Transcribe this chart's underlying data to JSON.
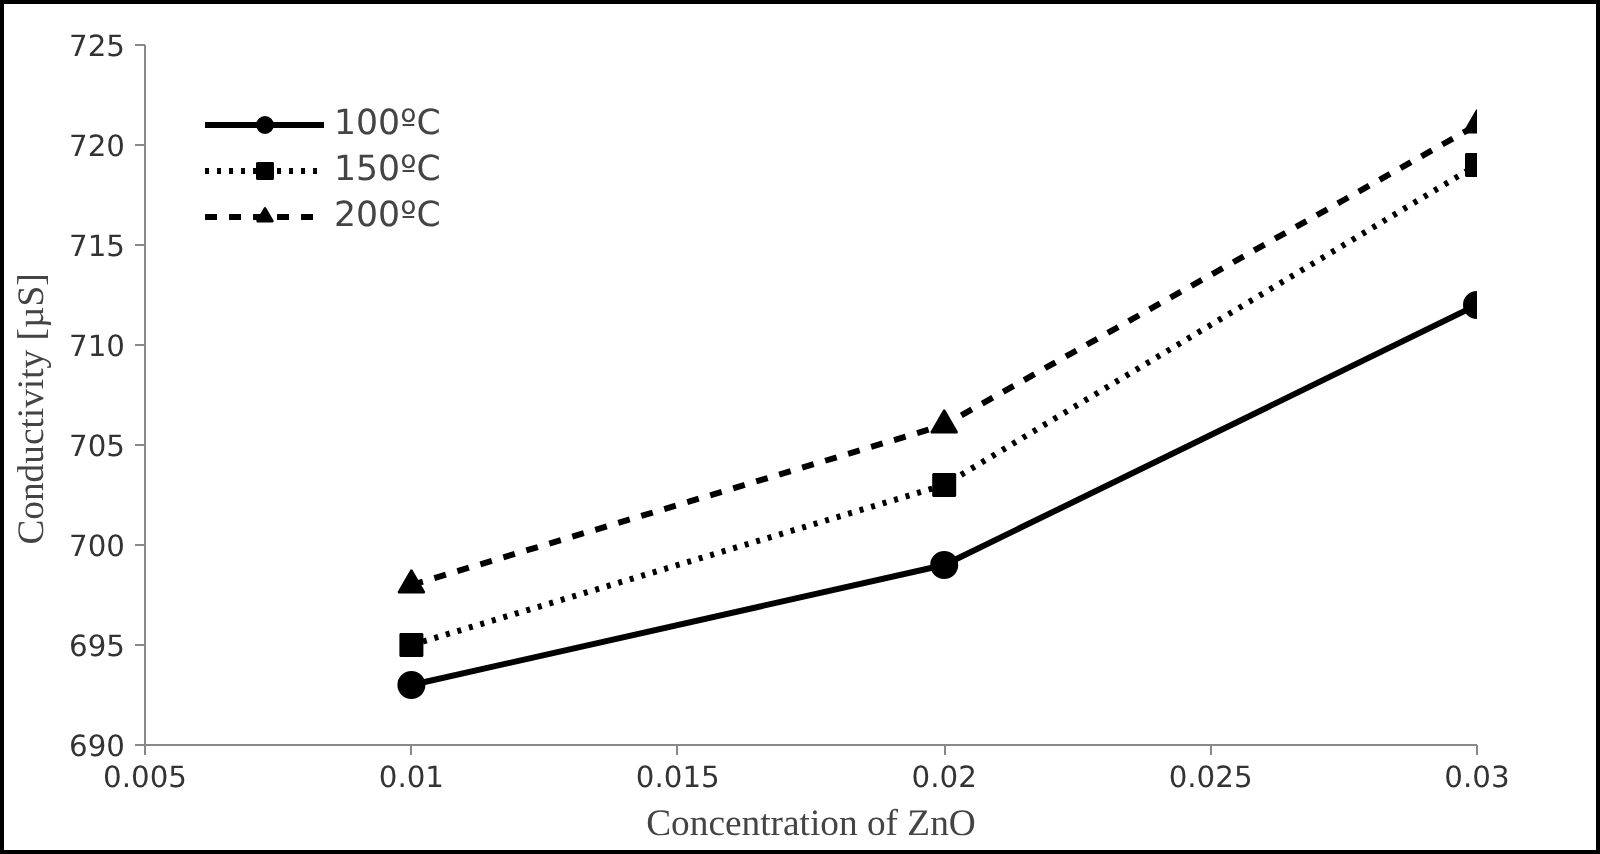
{
  "chart_data": {
    "type": "line",
    "xlabel": "Concentration of ZnO",
    "ylabel": "Conductivity    [µS]",
    "x": [
      0.01,
      0.02,
      0.03
    ],
    "series": [
      {
        "name": "100ºC",
        "color": "#000000",
        "values": [
          693,
          699,
          712
        ],
        "marker": "circle",
        "line_style": "solid"
      },
      {
        "name": "150ºC",
        "color": "#000000",
        "values": [
          695,
          703,
          719
        ],
        "marker": "square",
        "line_style": "dotted"
      },
      {
        "name": "200ºC",
        "color": "#000000",
        "values": [
          698,
          706,
          721
        ],
        "marker": "triangle",
        "line_style": "dashed"
      }
    ],
    "xlim": [
      0.005,
      0.03
    ],
    "xticks": [
      {
        "value": 0.005,
        "label": "0.005"
      },
      {
        "value": 0.01,
        "label": "0.01"
      },
      {
        "value": 0.015,
        "label": "0.015"
      },
      {
        "value": 0.02,
        "label": "0.02"
      },
      {
        "value": 0.025,
        "label": "0.025"
      },
      {
        "value": 0.03,
        "label": "0.03"
      }
    ],
    "ylim": [
      690,
      725
    ],
    "yticks": [
      690,
      695,
      700,
      705,
      710,
      715,
      720,
      725
    ],
    "grid": false,
    "legend": "top left"
  }
}
